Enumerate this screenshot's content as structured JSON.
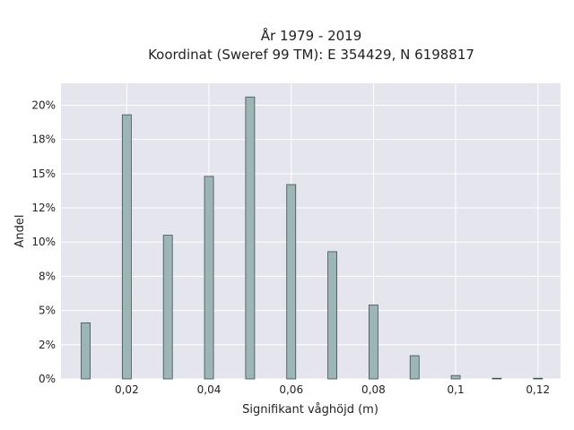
{
  "chart_data": {
    "type": "bar",
    "title": "År 1979 - 2019",
    "subtitle": "Koordinat (Sweref 99 TM): E 354429, N 6198817",
    "xlabel": "Signifikant våghöjd (m)",
    "ylabel": "Andel",
    "x": [
      0.01,
      0.02,
      0.03,
      0.04,
      0.05,
      0.06,
      0.07,
      0.08,
      0.09,
      0.1,
      0.11,
      0.12
    ],
    "values": [
      4.1,
      19.3,
      10.5,
      14.8,
      20.6,
      14.2,
      9.3,
      5.4,
      1.7,
      0.25,
      0.05,
      0.05
    ],
    "xlim": [
      0.004,
      0.1255
    ],
    "ylim": [
      0,
      21.6
    ],
    "x_ticks": [
      {
        "value": 0.02,
        "label": "0,02"
      },
      {
        "value": 0.04,
        "label": "0,04"
      },
      {
        "value": 0.06,
        "label": "0,06"
      },
      {
        "value": 0.08,
        "label": "0,08"
      },
      {
        "value": 0.1,
        "label": "0,1"
      },
      {
        "value": 0.12,
        "label": "0,12"
      }
    ],
    "y_ticks": [
      {
        "value": 0,
        "label": "0%"
      },
      {
        "value": 2.5,
        "label": "2%"
      },
      {
        "value": 5,
        "label": "5%"
      },
      {
        "value": 7.5,
        "label": "8%"
      },
      {
        "value": 10,
        "label": "10%"
      },
      {
        "value": 12.5,
        "label": "12%"
      },
      {
        "value": 15,
        "label": "15%"
      },
      {
        "value": 17.5,
        "label": "18%"
      },
      {
        "value": 20,
        "label": "20%"
      }
    ],
    "grid": true,
    "colors": {
      "background": "#E5E5EE",
      "grid": "#FFFFFF",
      "bar_fill": "#9DB5B5",
      "bar_stroke": "#3F4E4E"
    }
  }
}
